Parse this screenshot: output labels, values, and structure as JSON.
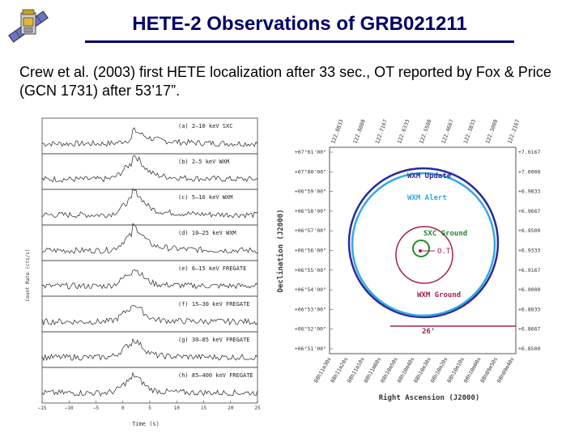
{
  "slide": {
    "title": "HETE-2 Observations of GRB021211",
    "body": "Crew et al. (2003) first HETE localization after 33 sec., OT reported by Fox & Price (GCN 1731) after 53’17”."
  },
  "lightcurve": {
    "panels": [
      {
        "label": "(a)  2–10 keV  SXC"
      },
      {
        "label": "(b)  2–5  keV WXM"
      },
      {
        "label": "(c)  5–10 keV WXM"
      },
      {
        "label": "(d)  10–25 keV WXM"
      },
      {
        "label": "(e)  6–15 keV FREGATE"
      },
      {
        "label": "(f)  15–30 keV FREGATE"
      },
      {
        "label": "(g)  30–85 keV FREGATE"
      },
      {
        "label": "(h)  85–400 keV FREGATE"
      }
    ],
    "ylabel": "Count Rate  (cts/s)",
    "xlabel": "Time (s)",
    "xticks": [
      "−15",
      "−10",
      "−5",
      "0",
      "5",
      "10",
      "15",
      "20",
      "25"
    ]
  },
  "skymap": {
    "top_ticks": [
      "122.8833",
      "122.8000",
      "122.7167",
      "122.6333",
      "122.5500",
      "122.4667",
      "122.3833",
      "122.3000",
      "122.2167"
    ],
    "left_ticks": [
      "+07°01'00\"",
      "+07°00'00\"",
      "+06°59'00\"",
      "+06°58'00\"",
      "+06°57'00\"",
      "+06°56'00\"",
      "+06°55'00\"",
      "+06°54'00\"",
      "+06°53'00\"",
      "+06°52'00\"",
      "+06°51'00\""
    ],
    "right_ticks": [
      "+7.0167",
      "+7.0000",
      "+6.9833",
      "+6.9667",
      "+6.9500",
      "+6.9333",
      "+6.9167",
      "+6.9000",
      "+6.8833",
      "+6.8667",
      "+6.8500"
    ],
    "bottom_ticks": [
      "08h11m30s",
      "08h11m20s",
      "08h11m10s",
      "08h11m00s",
      "08h10m50s",
      "08h10m40s",
      "08h10m30s",
      "08h10m20s",
      "08h10m10s",
      "08h10m00s",
      "08h09m50s",
      "08h09m40s"
    ],
    "ylabel": "Declination (J2000)",
    "xlabel": "Right Ascension (J2000)",
    "labels": {
      "wxm_update": "WXM Update",
      "wxm_alert": "WXM Alert",
      "sxc_ground": "SXC Ground",
      "ot": "O.T.",
      "wxm_ground": "WXM Ground",
      "scale": "26'"
    },
    "colors": {
      "wxm_update": "#2a2a9a",
      "wxm_alert": "#35a8e0",
      "sxc_ground": "#1f8a2a",
      "wxm_ground": "#a02050",
      "scale": "#a02050"
    }
  }
}
